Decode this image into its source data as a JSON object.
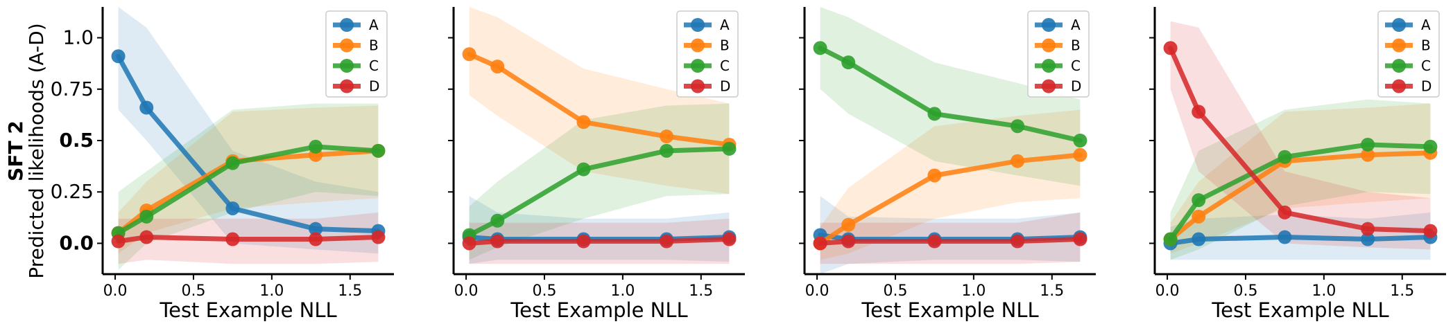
{
  "figure": {
    "row_title": "SFT 2",
    "ylabel": "Predicted likelihoods (A-D)"
  },
  "chart_data": [
    {
      "type": "line",
      "xlabel": "Test Example NLL",
      "x": [
        0.02,
        0.2,
        0.75,
        1.28,
        1.68
      ],
      "xlim": [
        -0.08,
        1.78
      ],
      "ylim": [
        -0.15,
        1.15
      ],
      "xticks": [
        "0.0",
        "0.5",
        "1.0",
        "1.5"
      ],
      "yticks": [
        "0.0",
        "0.25",
        "0.5",
        "0.75",
        "1.0"
      ],
      "legend": "top-right",
      "series": [
        {
          "name": "A",
          "color": "#1f77b4",
          "values": [
            0.91,
            0.66,
            0.17,
            0.07,
            0.06
          ],
          "band_low": [
            0.65,
            0.5,
            0.0,
            -0.03,
            -0.05
          ],
          "band_high": [
            1.15,
            1.05,
            0.45,
            0.3,
            0.25
          ]
        },
        {
          "name": "B",
          "color": "#ff7f0e",
          "values": [
            0.05,
            0.16,
            0.4,
            0.43,
            0.45
          ],
          "band_low": [
            -0.05,
            0.05,
            0.17,
            0.2,
            0.22
          ],
          "band_high": [
            0.15,
            0.3,
            0.64,
            0.66,
            0.67
          ]
        },
        {
          "name": "C",
          "color": "#2ca02c",
          "values": [
            0.05,
            0.13,
            0.39,
            0.47,
            0.45
          ],
          "band_low": [
            -0.13,
            0.0,
            0.15,
            0.25,
            0.23
          ],
          "band_high": [
            0.25,
            0.35,
            0.65,
            0.68,
            0.68
          ]
        },
        {
          "name": "D",
          "color": "#d62728",
          "values": [
            0.01,
            0.03,
            0.02,
            0.02,
            0.03
          ],
          "band_low": [
            -0.1,
            -0.08,
            -0.1,
            -0.1,
            -0.09
          ],
          "band_high": [
            0.12,
            0.12,
            0.12,
            0.12,
            0.15
          ]
        }
      ]
    },
    {
      "type": "line",
      "xlabel": "Test Example NLL",
      "x": [
        0.02,
        0.2,
        0.75,
        1.28,
        1.68
      ],
      "xlim": [
        -0.08,
        1.78
      ],
      "ylim": [
        -0.15,
        1.15
      ],
      "xticks": [
        "0.0",
        "0.5",
        "1.0",
        "1.5"
      ],
      "yticks": [],
      "legend": "top-right",
      "series": [
        {
          "name": "A",
          "color": "#1f77b4",
          "values": [
            0.03,
            0.02,
            0.02,
            0.02,
            0.03
          ],
          "band_low": [
            -0.1,
            -0.08,
            -0.08,
            -0.08,
            -0.09
          ],
          "band_high": [
            0.23,
            0.15,
            0.12,
            0.12,
            0.15
          ]
        },
        {
          "name": "B",
          "color": "#ff7f0e",
          "values": [
            0.92,
            0.86,
            0.59,
            0.52,
            0.48
          ],
          "band_low": [
            0.72,
            0.62,
            0.35,
            0.28,
            0.24
          ],
          "band_high": [
            1.15,
            1.1,
            0.85,
            0.75,
            0.68
          ]
        },
        {
          "name": "C",
          "color": "#2ca02c",
          "values": [
            0.04,
            0.11,
            0.36,
            0.45,
            0.46
          ],
          "band_low": [
            -0.08,
            -0.02,
            0.12,
            0.23,
            0.24
          ],
          "band_high": [
            0.18,
            0.3,
            0.6,
            0.67,
            0.68
          ]
        },
        {
          "name": "D",
          "color": "#d62728",
          "values": [
            0.0,
            0.01,
            0.01,
            0.01,
            0.02
          ],
          "band_low": [
            -0.1,
            -0.1,
            -0.1,
            -0.1,
            -0.1
          ],
          "band_high": [
            0.1,
            0.1,
            0.1,
            0.1,
            0.12
          ]
        }
      ]
    },
    {
      "type": "line",
      "xlabel": "Test Example NLL",
      "x": [
        0.02,
        0.2,
        0.75,
        1.28,
        1.68
      ],
      "xlim": [
        -0.08,
        1.78
      ],
      "ylim": [
        -0.15,
        1.15
      ],
      "xticks": [
        "0.0",
        "0.5",
        "1.0",
        "1.5"
      ],
      "yticks": [],
      "legend": "top-right",
      "series": [
        {
          "name": "A",
          "color": "#1f77b4",
          "values": [
            0.04,
            0.02,
            0.02,
            0.02,
            0.03
          ],
          "band_low": [
            -0.15,
            -0.1,
            -0.08,
            -0.08,
            -0.09
          ],
          "band_high": [
            0.23,
            0.13,
            0.12,
            0.12,
            0.15
          ]
        },
        {
          "name": "B",
          "color": "#ff7f0e",
          "values": [
            0.0,
            0.09,
            0.33,
            0.4,
            0.43
          ],
          "band_low": [
            -0.08,
            -0.05,
            0.12,
            0.2,
            0.22
          ],
          "band_high": [
            0.08,
            0.27,
            0.57,
            0.62,
            0.65
          ]
        },
        {
          "name": "C",
          "color": "#2ca02c",
          "values": [
            0.95,
            0.88,
            0.63,
            0.57,
            0.5
          ],
          "band_low": [
            0.75,
            0.63,
            0.4,
            0.33,
            0.28
          ],
          "band_high": [
            1.15,
            1.1,
            0.88,
            0.78,
            0.7
          ]
        },
        {
          "name": "D",
          "color": "#d62728",
          "values": [
            0.0,
            0.01,
            0.01,
            0.01,
            0.02
          ],
          "band_low": [
            -0.1,
            -0.1,
            -0.1,
            -0.1,
            -0.09
          ],
          "band_high": [
            0.1,
            0.1,
            0.1,
            0.1,
            0.15
          ]
        }
      ]
    },
    {
      "type": "line",
      "xlabel": "Test Example NLL",
      "x": [
        0.02,
        0.2,
        0.75,
        1.28,
        1.68
      ],
      "xlim": [
        -0.08,
        1.78
      ],
      "ylim": [
        -0.15,
        1.15
      ],
      "xticks": [
        "0.0",
        "0.5",
        "1.0",
        "1.5"
      ],
      "yticks": [],
      "legend": "top-right",
      "series": [
        {
          "name": "A",
          "color": "#1f77b4",
          "values": [
            0.0,
            0.02,
            0.03,
            0.02,
            0.03
          ],
          "band_low": [
            -0.08,
            -0.08,
            -0.08,
            -0.08,
            -0.08
          ],
          "band_high": [
            0.08,
            0.12,
            0.14,
            0.12,
            0.15
          ]
        },
        {
          "name": "B",
          "color": "#ff7f0e",
          "values": [
            0.02,
            0.13,
            0.4,
            0.43,
            0.44
          ],
          "band_low": [
            -0.05,
            0.0,
            0.17,
            0.2,
            0.22
          ],
          "band_high": [
            0.1,
            0.3,
            0.64,
            0.66,
            0.68
          ]
        },
        {
          "name": "C",
          "color": "#2ca02c",
          "values": [
            0.02,
            0.21,
            0.42,
            0.48,
            0.47
          ],
          "band_low": [
            -0.08,
            -0.03,
            0.18,
            0.25,
            0.24
          ],
          "band_high": [
            0.15,
            0.45,
            0.65,
            0.7,
            0.68
          ]
        },
        {
          "name": "D",
          "color": "#d62728",
          "values": [
            0.95,
            0.64,
            0.15,
            0.07,
            0.06
          ],
          "band_low": [
            0.75,
            0.35,
            0.0,
            -0.02,
            -0.03
          ],
          "band_high": [
            1.08,
            1.05,
            0.35,
            0.25,
            0.22
          ]
        }
      ]
    }
  ]
}
